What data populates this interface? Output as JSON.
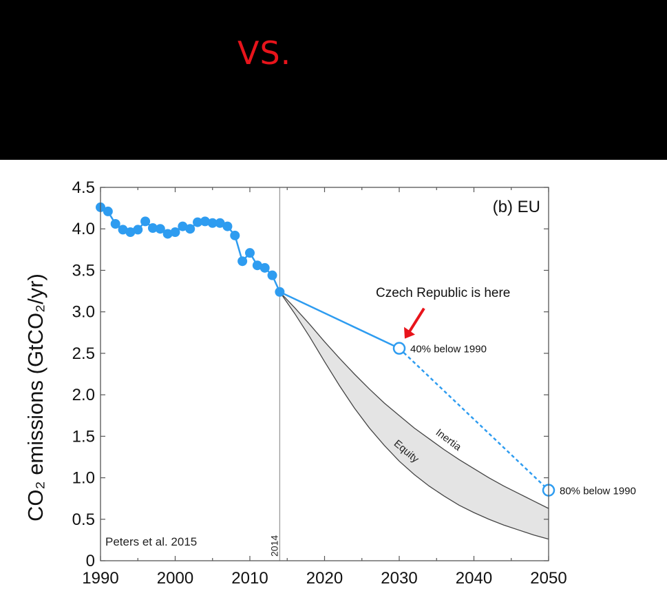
{
  "banner": {
    "title": "VS.",
    "background": "#000000",
    "title_color": "#e8141b"
  },
  "credit": "Peters et al. 2015",
  "chart_data": {
    "type": "line",
    "panel_label": "(b) EU",
    "ylabel": "CO₂ emissions (GtCO₂/yr)",
    "xlabel": "",
    "xlim": [
      1990,
      2050
    ],
    "ylim": [
      0,
      4.5
    ],
    "x_ticks": [
      1990,
      2000,
      2010,
      2020,
      2030,
      2040,
      2050
    ],
    "y_ticks": [
      {
        "value": 0,
        "label": "0"
      },
      {
        "value": 0.5,
        "label": "0.5"
      },
      {
        "value": 1.0,
        "label": "1.0"
      },
      {
        "value": 1.5,
        "label": "1.5"
      },
      {
        "value": 2.0,
        "label": "2.0"
      },
      {
        "value": 2.5,
        "label": "2.5"
      },
      {
        "value": 3.0,
        "label": "3.0"
      },
      {
        "value": 3.5,
        "label": "3.5"
      },
      {
        "value": 4.0,
        "label": "4.0"
      },
      {
        "value": 4.5,
        "label": "4.5"
      }
    ],
    "vertical_line": {
      "x": 2014,
      "label": "2014"
    },
    "historical": {
      "color": "#2e9cf0",
      "x": [
        1990,
        1991,
        1992,
        1993,
        1994,
        1995,
        1996,
        1997,
        1998,
        1999,
        2000,
        2001,
        2002,
        2003,
        2004,
        2005,
        2006,
        2007,
        2008,
        2009,
        2010,
        2011,
        2012,
        2013,
        2014
      ],
      "y": [
        4.26,
        4.21,
        4.06,
        3.99,
        3.96,
        3.99,
        4.09,
        4.01,
        4.0,
        3.94,
        3.96,
        4.03,
        4.0,
        4.08,
        4.09,
        4.07,
        4.07,
        4.03,
        3.92,
        3.61,
        3.71,
        3.56,
        3.53,
        3.44,
        3.24
      ]
    },
    "targets": {
      "color": "#2e9cf0",
      "points": [
        {
          "x": 2014,
          "y": 3.24
        },
        {
          "x": 2030,
          "y": 2.56,
          "label": "40% below 1990"
        },
        {
          "x": 2050,
          "y": 0.85,
          "label": "80% below 1990"
        }
      ]
    },
    "pathways": {
      "x": [
        2014,
        2016,
        2018,
        2020,
        2022,
        2024,
        2026,
        2028,
        2030,
        2032,
        2034,
        2036,
        2038,
        2040,
        2042,
        2044,
        2046,
        2048,
        2050
      ],
      "inertia": [
        3.24,
        3.05,
        2.85,
        2.64,
        2.44,
        2.25,
        2.07,
        1.9,
        1.75,
        1.6,
        1.47,
        1.34,
        1.22,
        1.11,
        1.0,
        0.9,
        0.81,
        0.72,
        0.63
      ],
      "equity": [
        3.24,
        2.98,
        2.7,
        2.4,
        2.11,
        1.84,
        1.6,
        1.39,
        1.2,
        1.04,
        0.9,
        0.78,
        0.67,
        0.58,
        0.5,
        0.43,
        0.37,
        0.31,
        0.26
      ],
      "inertia_label": "Inertia",
      "equity_label": "Equity",
      "fill": "#e4e4e4",
      "edge": "#444444"
    },
    "annotation": {
      "text": "Czech Republic is here",
      "arrow_color": "#e8141b",
      "target_x": 2030,
      "target_y": 2.56
    }
  }
}
